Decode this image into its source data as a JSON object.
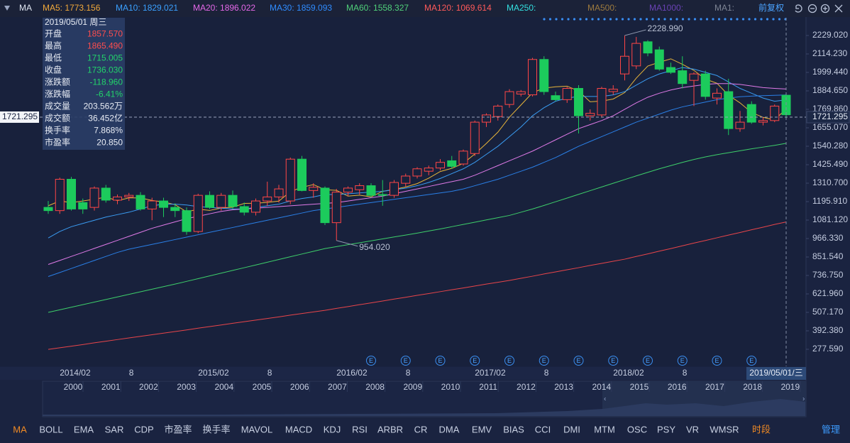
{
  "chart_data": {
    "type": "candlestick",
    "toolbar_title": "MA",
    "adjust_button": "前复权",
    "series": [
      {
        "name": "MA5: 1773.156",
        "color": "#f0a83a",
        "line_color": "#e8b53a",
        "values": [
          1170,
          1200,
          1190,
          1200,
          1211,
          1224,
          1202,
          1219,
          1219,
          1203,
          1194,
          1177,
          1132,
          1149,
          1141,
          1156,
          1161,
          1185,
          1186,
          1191,
          1199,
          1258,
          1285,
          1302,
          1270,
          1266,
          1230,
          1236,
          1226,
          1260,
          1272,
          1287,
          1308,
          1342,
          1383,
          1403,
          1434,
          1492,
          1558,
          1628,
          1721,
          1797,
          1873,
          1902,
          1910,
          1914,
          1884,
          1817,
          1821,
          1834,
          1874,
          1964,
          2039,
          2063,
          2084,
          2050,
          2012,
          1958,
          1932,
          1858,
          1810,
          1750,
          1720,
          1704,
          1773.156
        ]
      },
      {
        "name": "MA10: 1829.021",
        "color": "#3aa0ff",
        "line_color": "#3a9cf2",
        "values": [
          970,
          1010,
          1040,
          1060,
          1080,
          1100,
          1115,
          1130,
          1150,
          1170,
          1180,
          1180,
          1175,
          1165,
          1160,
          1155,
          1150,
          1150,
          1160,
          1170,
          1180,
          1200,
          1215,
          1225,
          1240,
          1240,
          1245,
          1250,
          1255,
          1260,
          1270,
          1280,
          1295,
          1315,
          1340,
          1370,
          1400,
          1440,
          1490,
          1540,
          1600,
          1660,
          1730,
          1780,
          1820,
          1840,
          1850,
          1850,
          1850,
          1860,
          1880,
          1920,
          1960,
          1990,
          2010,
          2030,
          2020,
          2000,
          1980,
          1940,
          1900,
          1870,
          1840,
          1820,
          1829.021
        ]
      },
      {
        "name": "MA20: 1896.022",
        "color": "#e468e8",
        "line_color": "#e07ae8",
        "values": [
          805,
          830,
          855,
          880,
          905,
          930,
          955,
          980,
          1005,
          1030,
          1050,
          1070,
          1090,
          1105,
          1120,
          1135,
          1145,
          1150,
          1155,
          1160,
          1165,
          1170,
          1175,
          1180,
          1185,
          1190,
          1200,
          1210,
          1220,
          1230,
          1245,
          1260,
          1275,
          1290,
          1305,
          1320,
          1335,
          1360,
          1390,
          1420,
          1450,
          1480,
          1510,
          1545,
          1580,
          1615,
          1650,
          1675,
          1700,
          1730,
          1770,
          1810,
          1845,
          1870,
          1890,
          1905,
          1915,
          1925,
          1930,
          1930,
          1925,
          1915,
          1905,
          1900,
          1896.022
        ]
      },
      {
        "name": "MA30: 1859.093",
        "color": "#2f8cff",
        "line_color": "#2a7fe6",
        "values": [
          730,
          755,
          780,
          805,
          830,
          855,
          880,
          900,
          915,
          930,
          945,
          960,
          975,
          990,
          1005,
          1020,
          1035,
          1050,
          1065,
          1080,
          1095,
          1110,
          1125,
          1140,
          1150,
          1160,
          1170,
          1180,
          1190,
          1200,
          1210,
          1220,
          1230,
          1240,
          1250,
          1260,
          1275,
          1295,
          1315,
          1335,
          1360,
          1385,
          1410,
          1440,
          1470,
          1505,
          1540,
          1570,
          1600,
          1630,
          1660,
          1690,
          1715,
          1740,
          1765,
          1785,
          1800,
          1815,
          1830,
          1840,
          1848,
          1852,
          1855,
          1857,
          1859.093
        ]
      },
      {
        "name": "MA60: 1558.327",
        "color": "#4fd07a",
        "line_color": "#3ecf6a",
        "values": [
          507,
          523,
          539,
          555,
          571,
          587,
          603,
          619,
          635,
          651,
          667,
          683,
          700,
          717,
          734,
          751,
          768,
          785,
          802,
          819,
          836,
          853,
          870,
          887,
          904,
          916,
          928,
          940,
          952,
          964,
          976,
          988,
          1000,
          1013,
          1026,
          1040,
          1054,
          1068,
          1082,
          1096,
          1110,
          1130,
          1150,
          1172,
          1195,
          1218,
          1241,
          1264,
          1287,
          1310,
          1333,
          1356,
          1378,
          1400,
          1420,
          1440,
          1458,
          1474,
          1488,
          1500,
          1512,
          1524,
          1535,
          1546,
          1558.327
        ]
      },
      {
        "name": "MA120: 1069.614",
        "color": "#ff5a5a",
        "line_color": "#e8454a",
        "values": [
          277,
          287,
          297,
          307,
          318,
          328,
          338,
          348,
          358,
          368,
          378,
          388,
          398,
          409,
          419,
          429,
          439,
          449,
          459,
          469,
          479,
          490,
          500,
          510,
          520,
          532,
          543,
          555,
          566,
          578,
          590,
          601,
          613,
          624,
          636,
          648,
          659,
          671,
          683,
          694,
          706,
          719,
          732,
          746,
          759,
          772,
          785,
          799,
          812,
          825,
          838,
          855,
          871,
          888,
          904,
          921,
          938,
          954,
          971,
          988,
          1004,
          1021,
          1037,
          1054,
          1069.614
        ]
      }
    ],
    "extra_legend": [
      {
        "label": "MA250:",
        "color": "#33e0e0"
      },
      {
        "label": "MA500:",
        "color": "#9c7a3e"
      },
      {
        "label": "MA1000:",
        "color": "#6a42b5"
      },
      {
        "label": "MA1:",
        "color": "#7d8494"
      }
    ],
    "ohlc": {
      "open": [
        1160,
        1140,
        1335,
        1190,
        1160,
        1280,
        1205,
        1225,
        1235,
        1150,
        1200,
        1160,
        1140,
        1010,
        1235,
        1160,
        1235,
        1165,
        1130,
        1200,
        1225,
        1200,
        1460,
        1265,
        1280,
        1065,
        1255,
        1270,
        1295,
        1240,
        1235,
        1310,
        1355,
        1385,
        1405,
        1450,
        1430,
        1495,
        1690,
        1725,
        1800,
        1865,
        1860,
        2080,
        1855,
        1830,
        1900,
        1730,
        1735,
        1880,
        1990,
        2040,
        2190,
        2140,
        2030,
        2010,
        1950,
        1990,
        1840,
        1880,
        1650,
        1800,
        1690,
        1700,
        1857.57
      ],
      "high": [
        1200,
        1345,
        1350,
        1215,
        1290,
        1300,
        1240,
        1250,
        1255,
        1220,
        1220,
        1185,
        1160,
        1245,
        1260,
        1250,
        1265,
        1190,
        1215,
        1320,
        1300,
        1470,
        1480,
        1310,
        1290,
        1275,
        1290,
        1310,
        1310,
        1330,
        1330,
        1370,
        1410,
        1420,
        1460,
        1480,
        1520,
        1700,
        1745,
        1800,
        1895,
        1890,
        2090,
        2100,
        1880,
        1910,
        1920,
        1770,
        1910,
        1920,
        2228.99,
        2220,
        2200,
        2160,
        2060,
        2100,
        2000,
        2010,
        1900,
        1960,
        1760,
        1820,
        1720,
        1800,
        1865.49
      ],
      "low": [
        1120,
        1120,
        1140,
        1120,
        1140,
        1190,
        1180,
        1200,
        1140,
        1080,
        1100,
        1100,
        990,
        1000,
        1150,
        1140,
        1150,
        1110,
        1110,
        1170,
        1190,
        1180,
        1260,
        1220,
        1050,
        954.02,
        1230,
        1240,
        1220,
        1170,
        1220,
        1290,
        1340,
        1360,
        1390,
        1400,
        1420,
        1480,
        1660,
        1700,
        1780,
        1850,
        1850,
        1860,
        1820,
        1810,
        1620,
        1700,
        1720,
        1860,
        1950,
        2020,
        2100,
        2010,
        1990,
        1900,
        1790,
        1830,
        1800,
        1610,
        1630,
        1680,
        1670,
        1690,
        1715.005
      ],
      "close": [
        1140,
        1335,
        1150,
        1150,
        1280,
        1205,
        1225,
        1235,
        1150,
        1200,
        1160,
        1140,
        1010,
        1235,
        1160,
        1235,
        1165,
        1130,
        1200,
        1225,
        1275,
        1460,
        1265,
        1285,
        1065,
        1255,
        1280,
        1295,
        1235,
        1235,
        1315,
        1355,
        1400,
        1405,
        1440,
        1415,
        1510,
        1690,
        1735,
        1790,
        1880,
        1880,
        2080,
        1880,
        1830,
        1900,
        1730,
        1745,
        1900,
        1895,
        2100,
        2180,
        2120,
        2020,
        2000,
        1930,
        1990,
        1850,
        1870,
        1650,
        1690,
        1690,
        1700,
        1790,
        1736.03
      ]
    },
    "up_color": "#ff4646",
    "down_color": "#1ccb5c",
    "categories": [
      null,
      "2014/02",
      null,
      null,
      null,
      null,
      null,
      "8",
      null,
      null,
      null,
      null,
      null,
      "2015/02",
      null,
      null,
      null,
      null,
      null,
      "8",
      null,
      null,
      null,
      null,
      null,
      "2016/02",
      null,
      null,
      null,
      null,
      null,
      "8",
      null,
      null,
      null,
      null,
      null,
      "2017/02",
      null,
      null,
      null,
      null,
      null,
      "8",
      null,
      null,
      null,
      null,
      null,
      "2018/02",
      null,
      null,
      null,
      null,
      null,
      "8",
      null,
      null,
      null,
      null,
      null,
      null,
      null,
      null,
      null
    ],
    "ylim": [
      176,
      2339.4
    ],
    "yticks": [
      {
        "value": 2229.02,
        "label": "2229.020"
      },
      {
        "value": 2114.23,
        "label": "2114.230"
      },
      {
        "value": 1999.44,
        "label": "1999.440"
      },
      {
        "value": 1884.65,
        "label": "1884.650"
      },
      {
        "value": 1769.86,
        "label": "1769.860"
      },
      {
        "value": 1655.07,
        "label": "1655.070"
      },
      {
        "value": 1540.28,
        "label": "1540.280"
      },
      {
        "value": 1425.49,
        "label": "1425.490"
      },
      {
        "value": 1310.7,
        "label": "1310.700"
      },
      {
        "value": 1195.91,
        "label": "1195.910"
      },
      {
        "value": 1081.12,
        "label": "1081.120"
      },
      {
        "value": 966.33,
        "label": "966.330"
      },
      {
        "value": 851.54,
        "label": "851.540"
      },
      {
        "value": 736.75,
        "label": "736.750"
      },
      {
        "value": 621.96,
        "label": "621.960"
      },
      {
        "value": 507.17,
        "label": "507.170"
      },
      {
        "value": 392.38,
        "label": "392.380"
      },
      {
        "value": 277.59,
        "label": "277.590"
      }
    ],
    "max_label": {
      "value": 2228.99,
      "label": "2228.990"
    },
    "min_label": {
      "value": 954.02,
      "label": "954.020"
    },
    "crosshair": {
      "date": "2019/05/01/三",
      "price": 1721.295
    },
    "info": {
      "date": "2019/05/01 周三",
      "rows": [
        {
          "label": "开盘",
          "value": "1857.570",
          "color": "#ff4d4d"
        },
        {
          "label": "最高",
          "value": "1865.490",
          "color": "#ff4d4d"
        },
        {
          "label": "最低",
          "value": "1715.005",
          "color": "#22d36a"
        },
        {
          "label": "收盘",
          "value": "1736.030",
          "color": "#22d36a"
        },
        {
          "label": "涨跌额",
          "value": "-118.960",
          "color": "#22d36a"
        },
        {
          "label": "涨跌幅",
          "value": "-6.41%",
          "color": "#22d36a"
        },
        {
          "label": "成交量",
          "value": "203.562万",
          "color": "#e8ecf4"
        },
        {
          "label": "成交额",
          "value": "36.452亿",
          "color": "#e8ecf4"
        },
        {
          "label": "换手率",
          "value": "7.868%",
          "color": "#e8ecf4"
        },
        {
          "label": "市盈率",
          "value": "20.850",
          "color": "#e8ecf4"
        }
      ]
    },
    "events": [
      "E",
      "E",
      "E",
      "E",
      "E",
      "E",
      "E",
      "E",
      "E",
      "E",
      "E",
      "E"
    ],
    "navigator_years": [
      "2000",
      "2001",
      "2002",
      "2003",
      "2004",
      "2005",
      "2006",
      "2007",
      "2008",
      "2009",
      "2010",
      "2011",
      "2012",
      "2013",
      "2014",
      "2015",
      "2016",
      "2017",
      "2018",
      "2019"
    ],
    "tabs": [
      "MA",
      "BOLL",
      "EMA",
      "SAR",
      "CDP",
      "市盈率",
      "换手率",
      "MAVOL",
      "MACD",
      "KDJ",
      "RSI",
      "ARBR",
      "CR",
      "DMA",
      "EMV",
      "BIAS",
      "CCI",
      "DMI",
      "MTM",
      "OSC",
      "PSY",
      "VR",
      "WMSR",
      "时段"
    ],
    "manage": "管理"
  }
}
